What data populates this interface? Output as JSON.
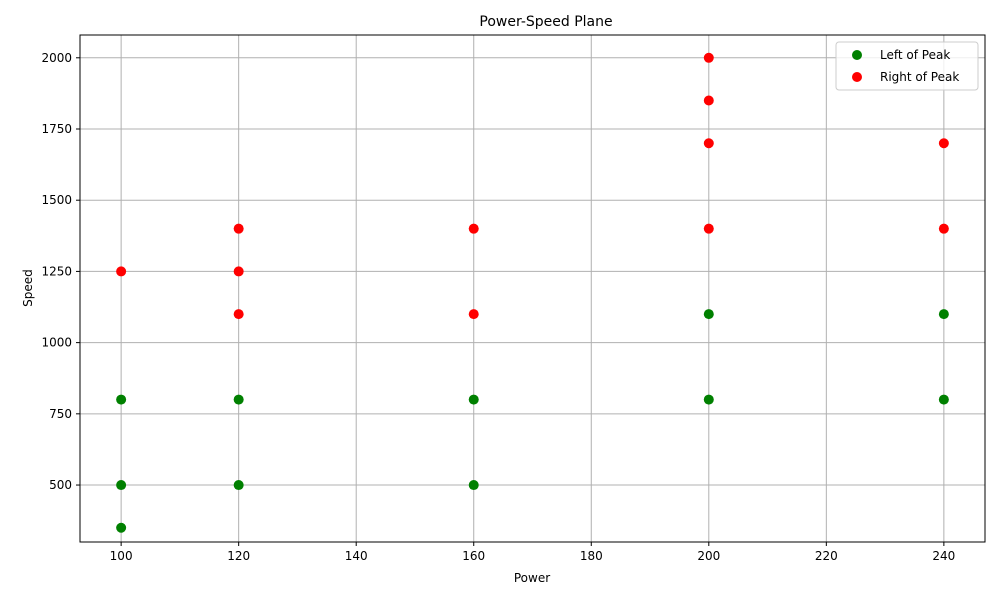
{
  "chart_data": {
    "type": "scatter",
    "title": "Power-Speed Plane",
    "xlabel": "Power",
    "ylabel": "Speed",
    "xlim": [
      93,
      247
    ],
    "ylim": [
      300,
      2080
    ],
    "xticks": [
      100,
      120,
      140,
      160,
      180,
      200,
      220,
      240
    ],
    "yticks": [
      500,
      750,
      1000,
      1250,
      1500,
      1750,
      2000
    ],
    "grid": true,
    "legend_position": "top-right",
    "series": [
      {
        "name": "Left of Peak",
        "color": "#008000",
        "points": [
          [
            100,
            350
          ],
          [
            100,
            500
          ],
          [
            100,
            800
          ],
          [
            120,
            500
          ],
          [
            120,
            800
          ],
          [
            160,
            500
          ],
          [
            160,
            800
          ],
          [
            200,
            800
          ],
          [
            200,
            1100
          ],
          [
            240,
            800
          ],
          [
            240,
            1100
          ]
        ]
      },
      {
        "name": "Right of Peak",
        "color": "#ff0000",
        "points": [
          [
            100,
            1250
          ],
          [
            120,
            1100
          ],
          [
            120,
            1250
          ],
          [
            120,
            1400
          ],
          [
            160,
            1100
          ],
          [
            160,
            1400
          ],
          [
            200,
            1400
          ],
          [
            200,
            1700
          ],
          [
            200,
            1850
          ],
          [
            200,
            2000
          ],
          [
            240,
            1400
          ],
          [
            240,
            1700
          ]
        ]
      }
    ]
  }
}
